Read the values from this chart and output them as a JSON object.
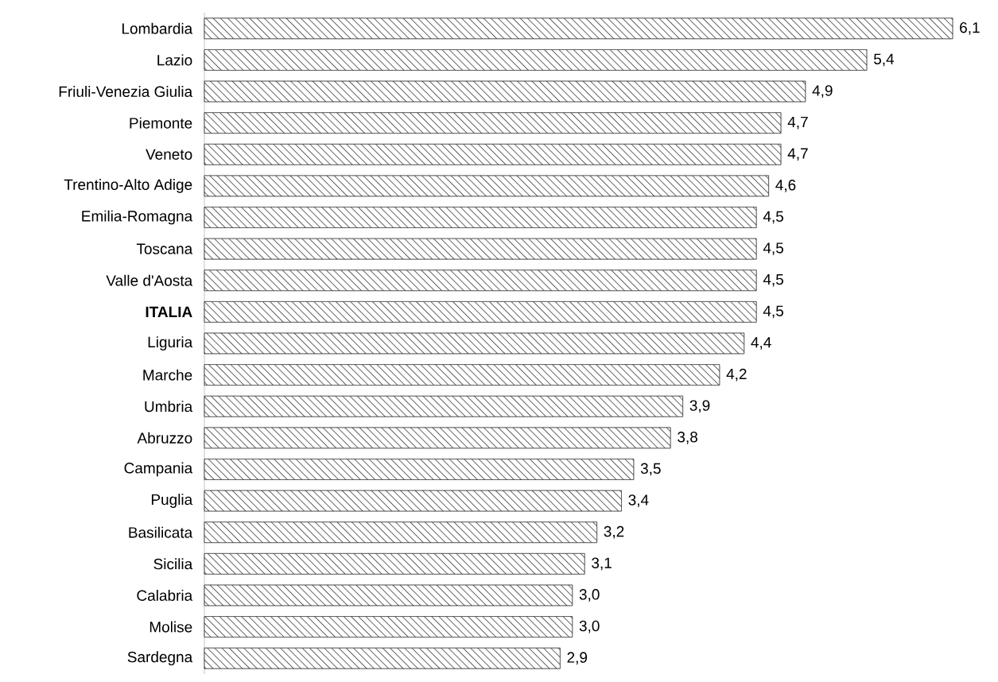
{
  "chart_data": {
    "type": "bar",
    "orientation": "horizontal",
    "color": "#000000",
    "categories": [
      "Lombardia",
      "Lazio",
      "Friuli-Venezia Giulia",
      "Piemonte",
      "Veneto",
      "Trentino-Alto Adige",
      "Emilia-Romagna",
      "Toscana",
      "Valle d'Aosta",
      "**ITALIA**",
      "Liguria",
      "Marche",
      "Umbria",
      "Abruzzo",
      "Campania",
      "Puglia",
      "Basilicata",
      "Sicilia",
      "Calabria",
      "Molise",
      "Sardegna"
    ],
    "values": [
      6.1,
      5.4,
      4.9,
      4.7,
      4.7,
      4.6,
      4.5,
      4.5,
      4.5,
      4.5,
      4.4,
      4.2,
      3.9,
      3.8,
      3.5,
      3.4,
      3.2,
      3.1,
      3.0,
      3.0,
      2.9
    ],
    "value_labels": [
      "6,1",
      "5,4",
      "4,9",
      "4,7",
      "4,7",
      "4,6",
      "4,5",
      "4,5",
      "4,5",
      "4,5",
      "4,4",
      "4,2",
      "3,9",
      "3,8",
      "3,5",
      "3,4",
      "3,2",
      "3,1",
      "3,0",
      "3,0",
      "2,9"
    ]
  }
}
